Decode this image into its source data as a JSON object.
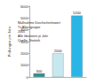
{
  "chart_data": {
    "type": "bar",
    "y_label": "Prüfungen pro Jahr",
    "categories": [
      null,
      null,
      null
    ],
    "values": [
      300,
      2000,
      5200
    ],
    "colors": [
      "#2a8f8f",
      "#c8e8f0",
      "#29b6e6"
    ],
    "ylim": [
      0,
      6000
    ],
    "yticks": [
      0,
      1000,
      2000,
      3000,
      4000,
      5000,
      6000
    ],
    "data_labels": true,
    "grid": false,
    "annotations": [
      "Maßnahme Durchschnittswert",
      "Tx Altersgruppe",
      "2005",
      "Alle Ideatoren je Jahr",
      "Quelle: Statistik"
    ]
  }
}
